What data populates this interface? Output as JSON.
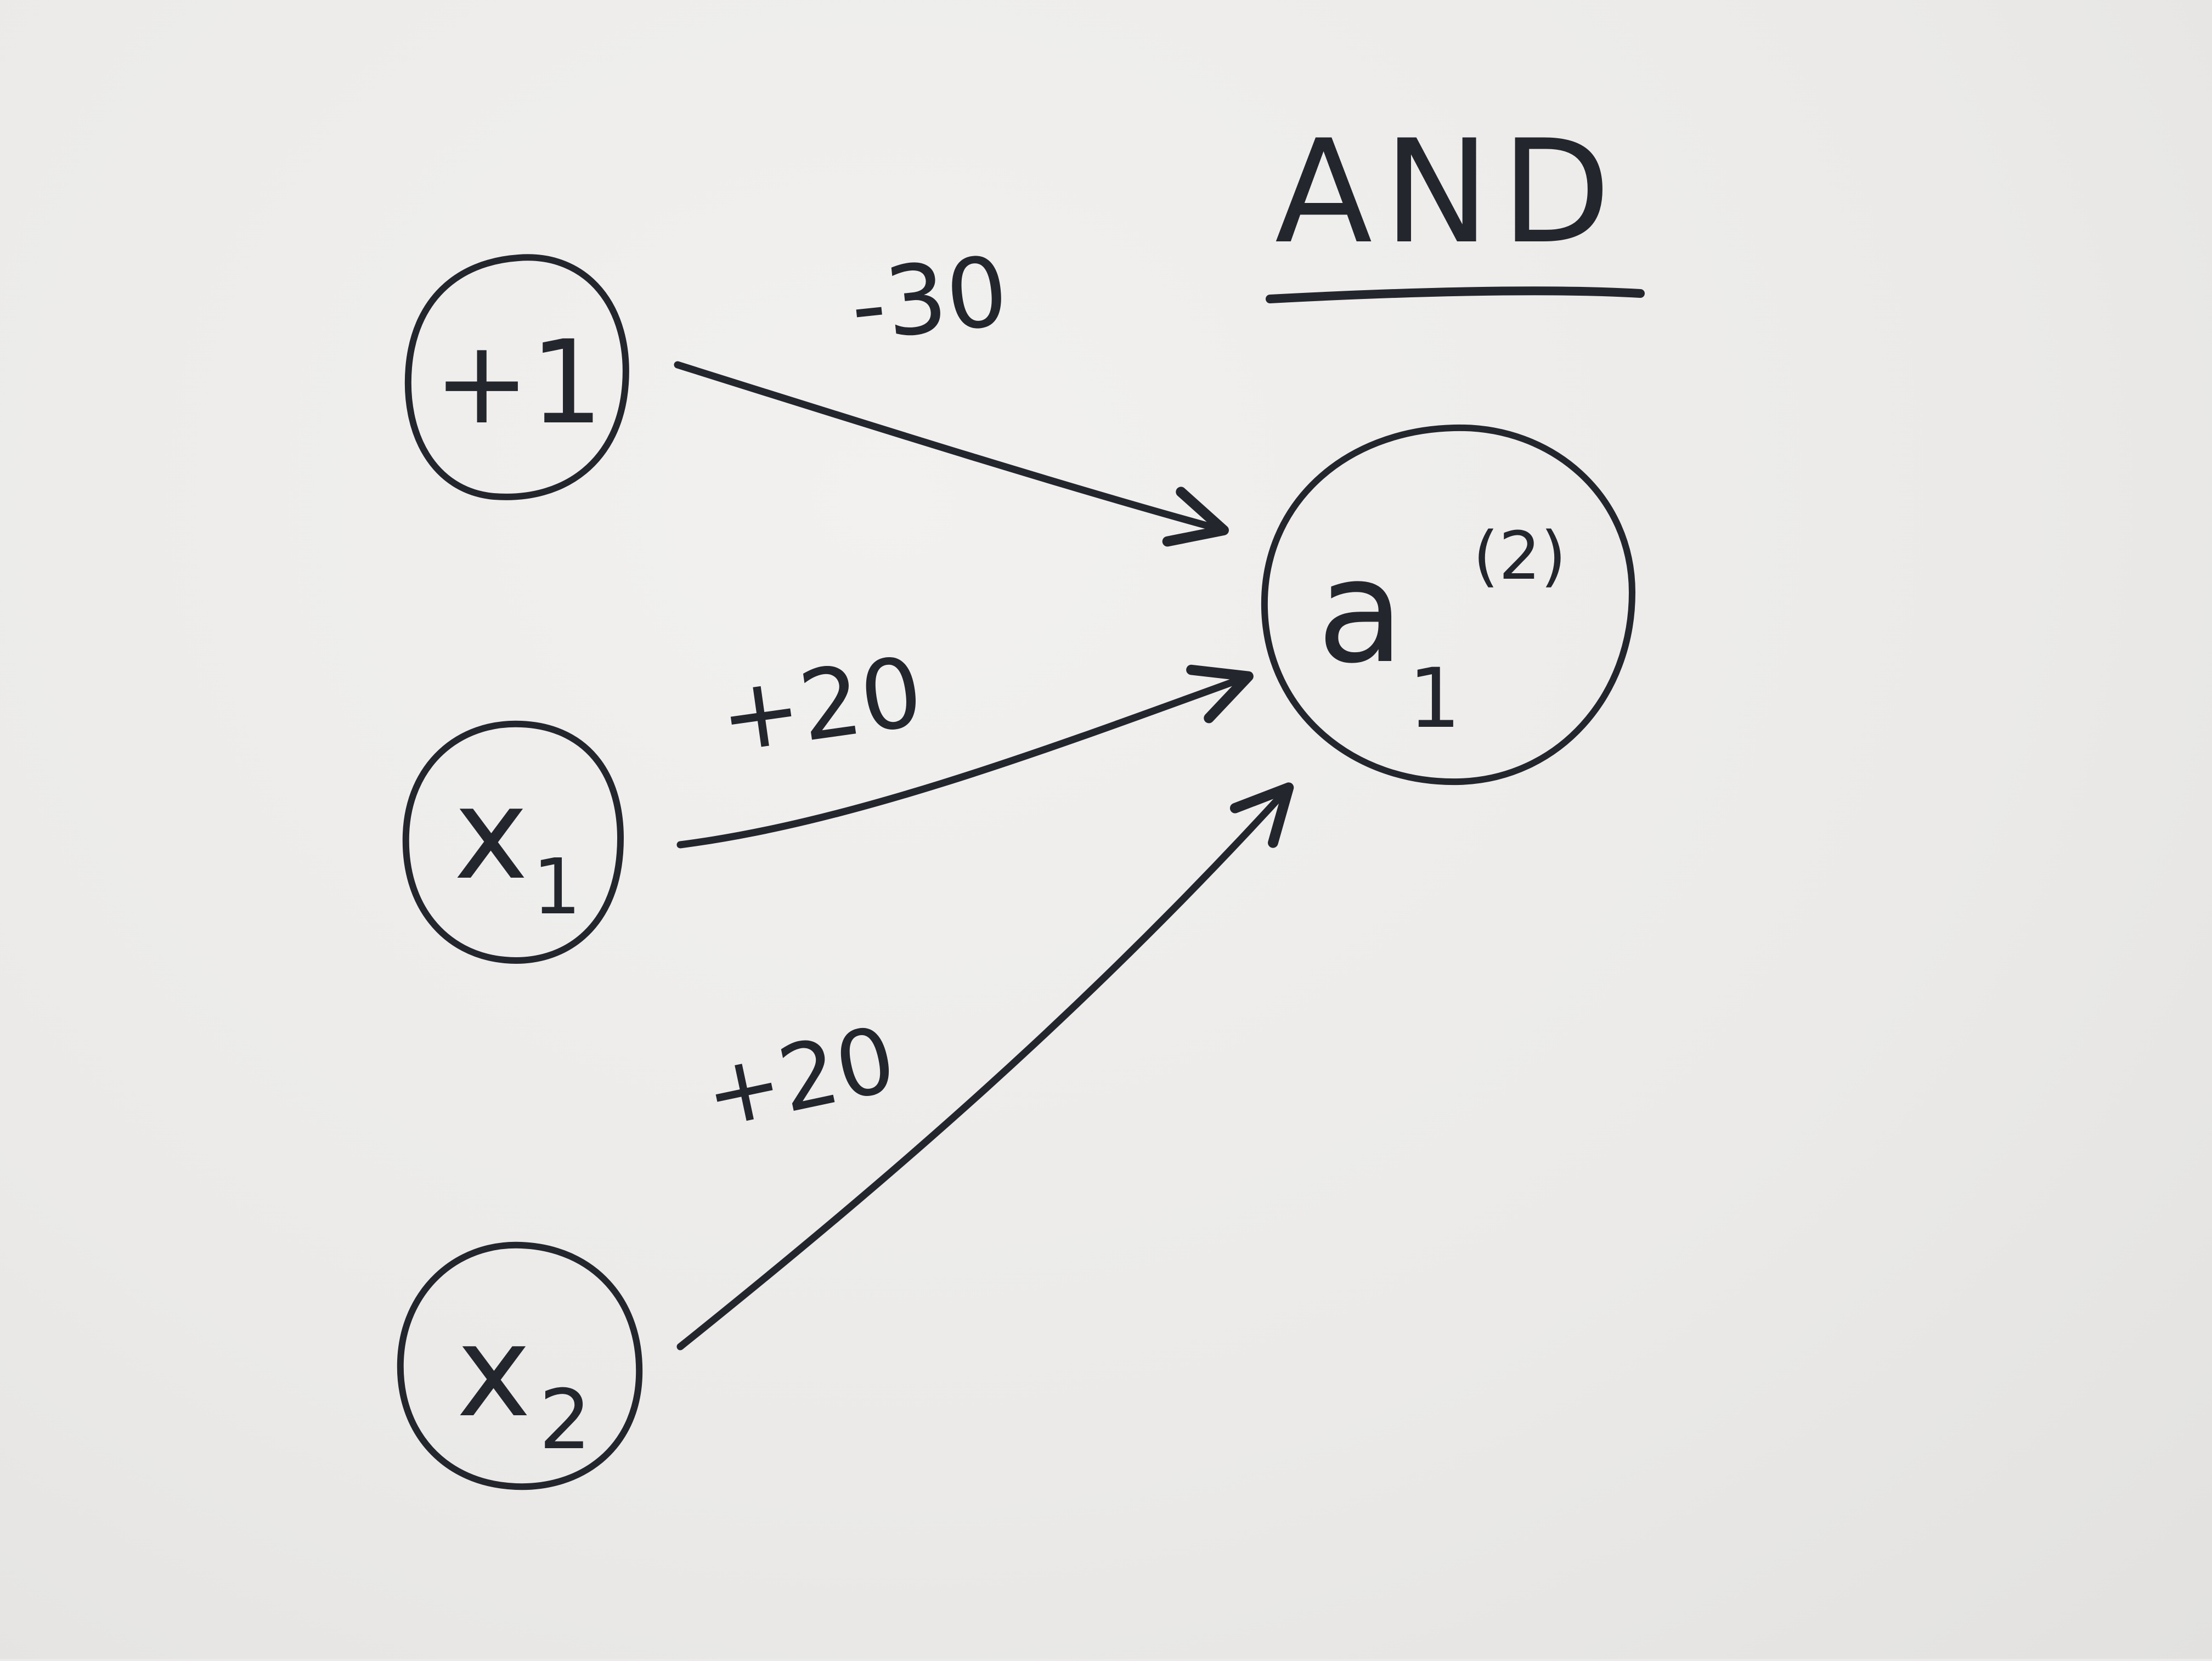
{
  "title": "AND",
  "nodes": {
    "bias": {
      "label": "+1"
    },
    "x1": {
      "base": "x",
      "subscript": "1"
    },
    "x2": {
      "base": "x",
      "subscript": "2"
    },
    "output": {
      "base": "a",
      "subscript": "1",
      "superscript": "(2)"
    }
  },
  "edges": {
    "bias_to_output": {
      "weight": "-30"
    },
    "x1_to_output": {
      "weight": "+20"
    },
    "x2_to_output": {
      "weight": "+20"
    }
  },
  "colors": {
    "ink": "#23262d",
    "paper": "#ecebe9"
  }
}
